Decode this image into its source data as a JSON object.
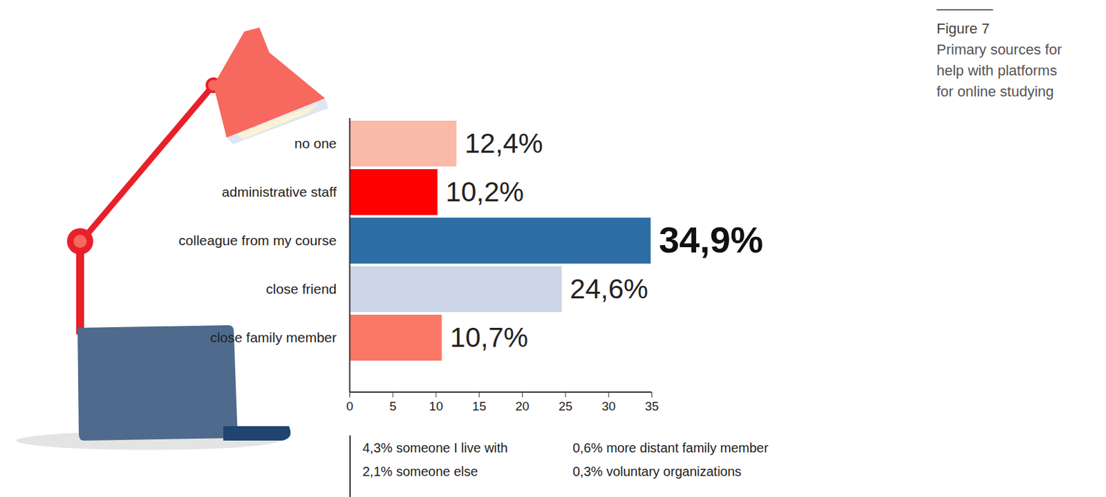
{
  "chart_data": {
    "type": "bar",
    "title": "Figure 7",
    "subtitle": "Primary sources for help with platforms for online studying",
    "orientation": "horizontal",
    "categories": [
      "no one",
      "administrative staff",
      "colleague from my course",
      "close friend",
      "close family member"
    ],
    "values": [
      12.4,
      10.2,
      34.9,
      24.6,
      10.7
    ],
    "value_labels": [
      "12,4%",
      "10,2%",
      "34,9%",
      "24,6%",
      "10,7%"
    ],
    "colors": [
      "#fbb9a8",
      "#fe0000",
      "#2e6da4",
      "#ccd6e6",
      "#fb7766"
    ],
    "data_labels": true,
    "grid": false,
    "xlim": [
      0,
      35
    ],
    "xticks": [
      0,
      5,
      10,
      15,
      20,
      25,
      30,
      35
    ],
    "annotations": [
      "4,3% someone I live with",
      "0,6% more distant family member",
      "2,1% someone else",
      "0,3% voluntary organizations"
    ]
  }
}
